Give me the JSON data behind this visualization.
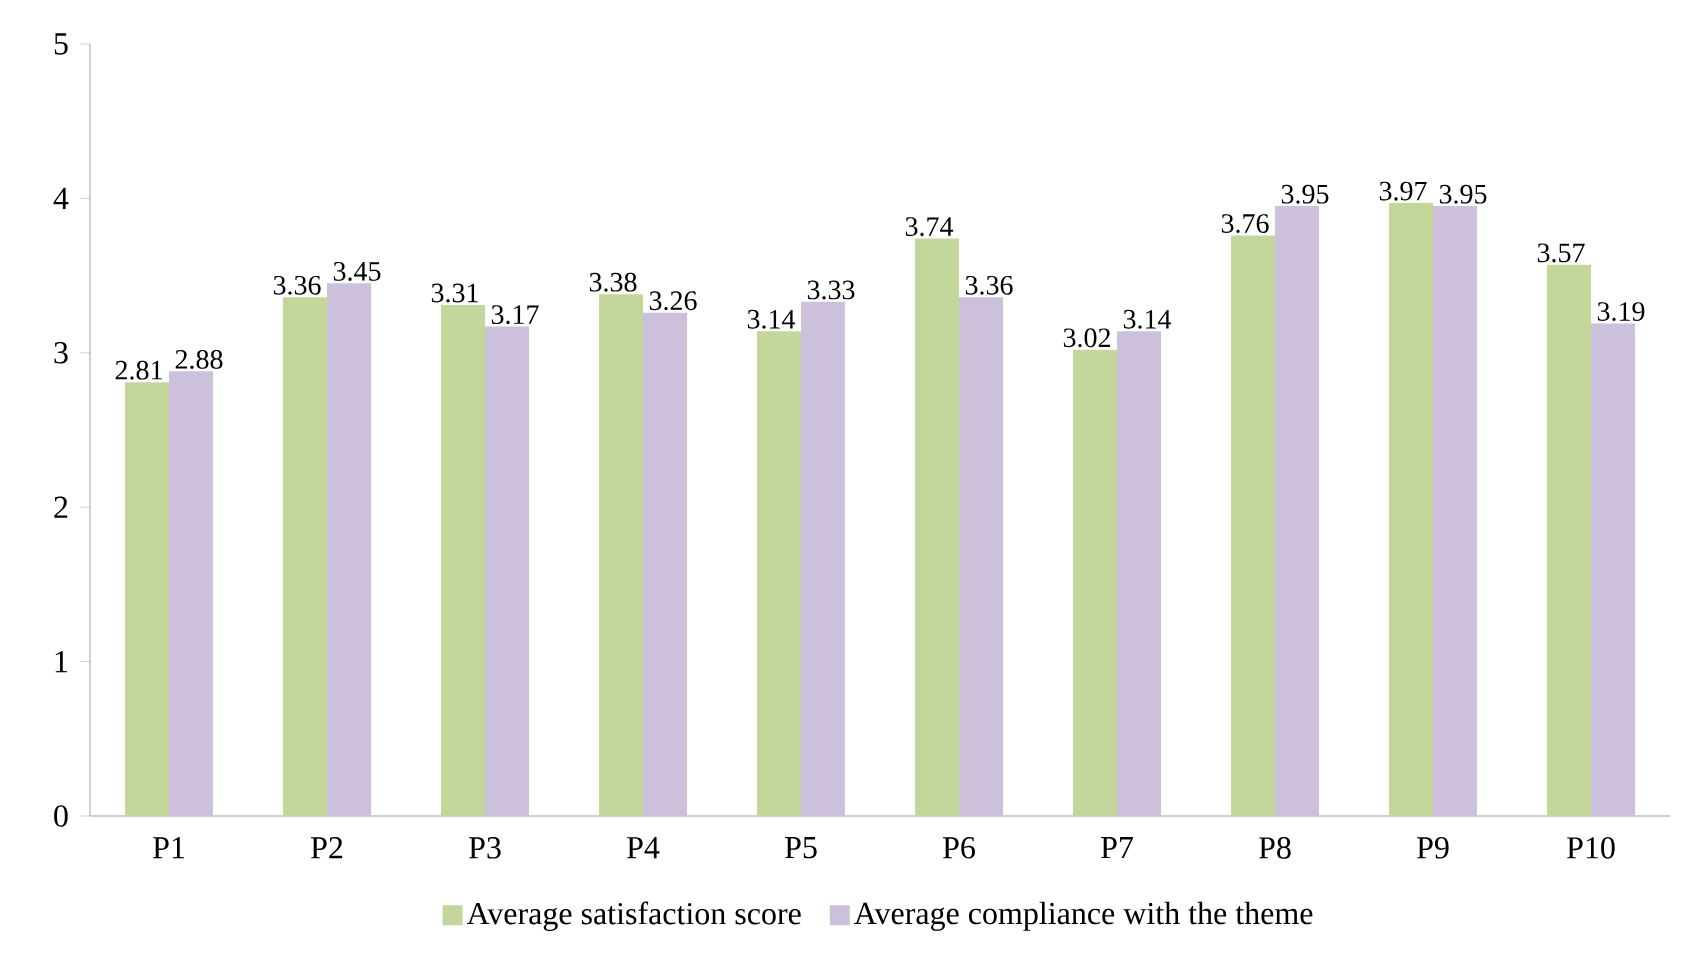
{
  "chart_data": {
    "type": "bar",
    "categories": [
      "P1",
      "P2",
      "P3",
      "P4",
      "P5",
      "P6",
      "P7",
      "P8",
      "P9",
      "P10"
    ],
    "series": [
      {
        "name": "Average satisfaction score",
        "color": "#c4d79b",
        "values": [
          2.81,
          3.36,
          3.31,
          3.38,
          3.14,
          3.74,
          3.02,
          3.76,
          3.97,
          3.57
        ]
      },
      {
        "name": "Average compliance with the theme",
        "color": "#ccc0da",
        "values": [
          2.88,
          3.45,
          3.17,
          3.26,
          3.33,
          3.36,
          3.14,
          3.95,
          3.95,
          3.19
        ]
      }
    ],
    "ylim": [
      0,
      5
    ],
    "yticks": [
      0,
      1,
      2,
      3,
      4,
      5
    ],
    "data_labels": true,
    "legend": "bottom",
    "grid": false
  }
}
